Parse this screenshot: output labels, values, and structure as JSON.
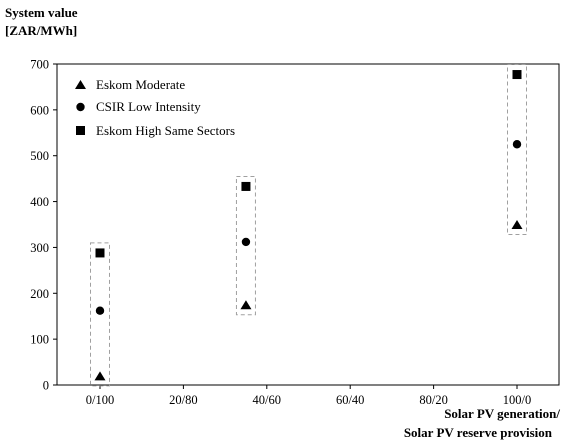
{
  "chart_data": {
    "type": "scatter",
    "ylabel_line1": "System value",
    "ylabel_line2": "[ZAR/MWh]",
    "xlabel_line1": "Solar PV generation/",
    "xlabel_line2": "Solar PV reserve provision",
    "categories": [
      "0/100",
      "20/80",
      "40/60",
      "60/40",
      "80/20",
      "100/0"
    ],
    "yticks": [
      "0",
      "100",
      "200",
      "300",
      "400",
      "500",
      "600",
      "700"
    ],
    "ylim": [
      0,
      700
    ],
    "grid": false,
    "legend_position": "top-left",
    "series": [
      {
        "name": "Eskom Moderate",
        "marker": "triangle",
        "x": [
          0,
          35,
          100
        ],
        "values": [
          20,
          175,
          350
        ]
      },
      {
        "name": "CSIR Low Intensity",
        "marker": "circle",
        "x": [
          0,
          35,
          100
        ],
        "values": [
          162,
          312,
          525
        ]
      },
      {
        "name": "Eskom High Same Sectors",
        "marker": "square",
        "x": [
          0,
          35,
          100
        ],
        "values": [
          288,
          433,
          677
        ]
      }
    ],
    "ranges": [
      {
        "x": 0,
        "low": 20,
        "high": 288
      },
      {
        "x": 35,
        "low": 175,
        "high": 433
      },
      {
        "x": 100,
        "low": 350,
        "high": 677
      }
    ]
  }
}
